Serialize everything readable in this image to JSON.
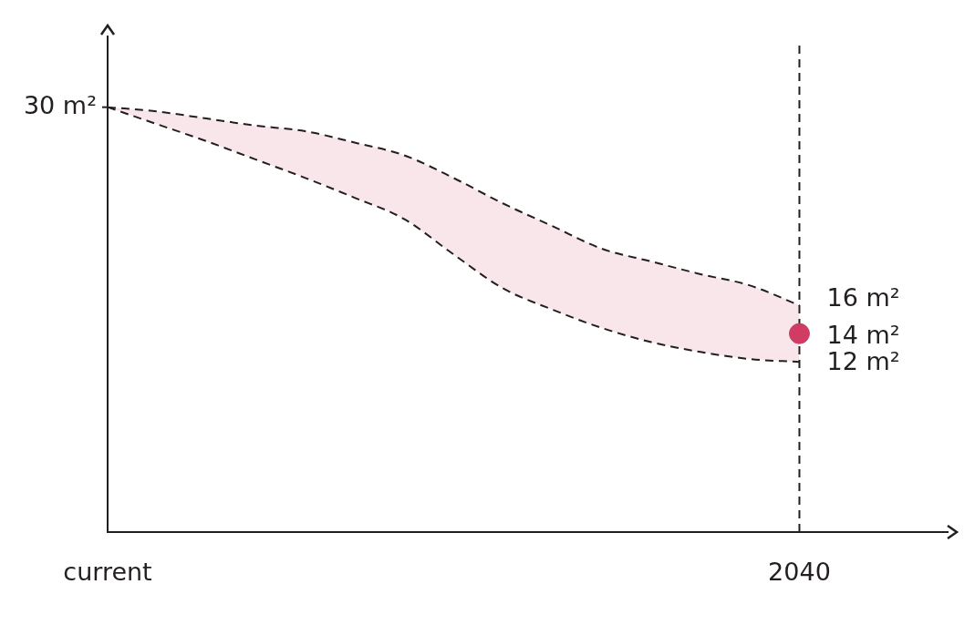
{
  "chart_data": {
    "type": "line",
    "categories": [
      "current",
      null,
      null,
      null,
      null,
      null,
      null,
      null,
      null,
      null,
      null,
      null,
      null,
      null,
      "2040",
      null,
      null,
      null
    ],
    "ylim": [
      0,
      35
    ],
    "grid": false,
    "legend": false,
    "marker": "none",
    "line_style": "dashed",
    "annotations": [
      {
        "text": "30 m²",
        "x": "current",
        "y": 30
      }
    ],
    "series": [
      {
        "color": "#231f20",
        "values": [
          30,
          29.7,
          29.2,
          28.7,
          28.3,
          27.5,
          26.6,
          25.0,
          23.2,
          21.6,
          20.0,
          19.1,
          18.2,
          17.4,
          16,
          null,
          null,
          null
        ],
        "value_labels": [
          null,
          null,
          null,
          null,
          null,
          null,
          null,
          null,
          null,
          null,
          null,
          null,
          null,
          null,
          "16 m²",
          null,
          null,
          null
        ]
      },
      {
        "color": "#231f20",
        "values": [
          30,
          28.8,
          27.6,
          26.3,
          25.0,
          23.6,
          22.1,
          19.6,
          17.2,
          15.7,
          14.4,
          13.4,
          12.7,
          12.2,
          12,
          null,
          null,
          null
        ],
        "value_labels": [
          null,
          null,
          null,
          null,
          null,
          null,
          null,
          null,
          null,
          null,
          null,
          null,
          null,
          null,
          "12 m²",
          null,
          null,
          null
        ]
      },
      {
        "type": "scatter",
        "color": "#d03c64",
        "marker": "circle",
        "values": [
          null,
          null,
          null,
          null,
          null,
          null,
          null,
          null,
          null,
          null,
          null,
          null,
          null,
          null,
          14,
          null,
          null,
          null
        ],
        "value_labels": [
          null,
          null,
          null,
          null,
          null,
          null,
          null,
          null,
          null,
          null,
          null,
          null,
          null,
          null,
          "14 m²",
          null,
          null,
          null
        ]
      }
    ],
    "ref_lines": [
      {
        "axis": "x",
        "value": "2040",
        "color": "#231f20",
        "line_style": "dashed"
      }
    ]
  }
}
